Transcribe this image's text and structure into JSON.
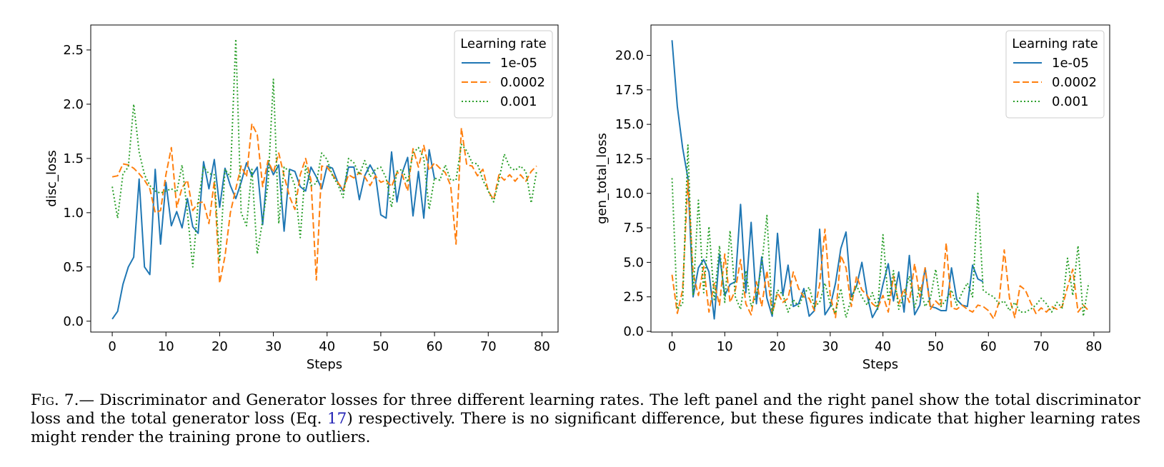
{
  "chart_data": [
    {
      "type": "line",
      "xlabel": "Steps",
      "ylabel": "disc_loss",
      "xlim": [
        -4,
        83
      ],
      "ylim": [
        -0.1,
        2.73
      ],
      "xticks": [
        "0",
        "10",
        "20",
        "30",
        "40",
        "50",
        "60",
        "70",
        "80"
      ],
      "yticks": [
        "0.0",
        "0.5",
        "1.0",
        "1.5",
        "2.0",
        "2.5"
      ],
      "grid": false,
      "legend": {
        "title": "Learning rate",
        "placement": "top-right"
      },
      "series": [
        {
          "name": "1e-05",
          "color": "#1f77b4",
          "style": "solid",
          "x": [
            0,
            1,
            2,
            3,
            4,
            5,
            6,
            7,
            8,
            9,
            10,
            11,
            12,
            13,
            14,
            15,
            16,
            17,
            18,
            19,
            20,
            21,
            22,
            23,
            24,
            25,
            26,
            27,
            28,
            29,
            30,
            31,
            32,
            33,
            34,
            35,
            36,
            37,
            38,
            39,
            40,
            41,
            42,
            43,
            44,
            45,
            46,
            47,
            48,
            49,
            50,
            51,
            52,
            53,
            54,
            55,
            56,
            57,
            58,
            59,
            60
          ],
          "y": [
            0.02,
            0.09,
            0.34,
            0.5,
            0.59,
            1.31,
            0.5,
            0.43,
            1.4,
            0.71,
            1.28,
            0.88,
            1.01,
            0.86,
            1.13,
            0.87,
            0.81,
            1.47,
            1.22,
            1.49,
            1.05,
            1.41,
            1.25,
            1.13,
            1.28,
            1.46,
            1.34,
            1.42,
            0.89,
            1.47,
            1.35,
            1.44,
            0.83,
            1.4,
            1.38,
            1.24,
            1.2,
            1.42,
            1.33,
            1.22,
            1.43,
            1.41,
            1.28,
            1.2,
            1.42,
            1.42,
            1.12,
            1.34,
            1.44,
            1.35,
            0.98,
            0.95,
            1.56,
            1.1,
            1.37,
            1.51,
            0.97,
            1.38,
            0.95,
            1.58,
            1.31
          ]
        },
        {
          "name": "0.0002",
          "color": "#ff7f0e",
          "style": "dashed",
          "x": [
            0,
            1,
            2,
            3,
            4,
            5,
            6,
            7,
            8,
            9,
            10,
            11,
            12,
            13,
            14,
            15,
            16,
            17,
            18,
            19,
            20,
            21,
            22,
            23,
            24,
            25,
            26,
            27,
            28,
            29,
            30,
            31,
            32,
            33,
            34,
            35,
            36,
            37,
            38,
            39,
            40,
            41,
            42,
            43,
            44,
            45,
            46,
            47,
            48,
            49,
            50,
            51,
            52,
            53,
            54,
            55,
            56,
            57,
            58,
            59,
            60,
            61,
            62,
            63,
            64,
            65,
            66,
            67,
            68,
            69,
            70,
            71,
            72,
            73,
            74,
            75,
            76,
            77,
            78,
            79
          ],
          "y": [
            1.33,
            1.34,
            1.45,
            1.44,
            1.41,
            1.36,
            1.3,
            1.22,
            1.0,
            1.02,
            1.35,
            1.6,
            1.05,
            1.23,
            1.3,
            1.02,
            1.09,
            1.1,
            0.9,
            1.29,
            0.35,
            0.6,
            1.0,
            1.22,
            1.43,
            1.33,
            1.82,
            1.72,
            1.24,
            1.48,
            1.37,
            1.55,
            1.34,
            1.15,
            1.03,
            1.35,
            1.5,
            1.3,
            0.38,
            1.43,
            1.42,
            1.35,
            1.28,
            1.21,
            1.35,
            1.32,
            1.37,
            1.33,
            1.25,
            1.34,
            1.28,
            1.3,
            1.24,
            1.37,
            1.35,
            1.2,
            1.59,
            1.42,
            1.62,
            1.39,
            1.46,
            1.41,
            1.37,
            1.25,
            0.71,
            1.78,
            1.44,
            1.43,
            1.34,
            1.4,
            1.2,
            1.12,
            1.35,
            1.3,
            1.35,
            1.29,
            1.35,
            1.29,
            1.38,
            1.43
          ]
        },
        {
          "name": "0.001",
          "color": "#2ca02c",
          "style": "dotted",
          "x": [
            0,
            1,
            2,
            3,
            4,
            5,
            6,
            7,
            8,
            9,
            10,
            11,
            12,
            13,
            14,
            15,
            16,
            17,
            18,
            19,
            20,
            21,
            22,
            23,
            24,
            25,
            26,
            27,
            28,
            29,
            30,
            31,
            32,
            33,
            34,
            35,
            36,
            37,
            38,
            39,
            40,
            41,
            42,
            43,
            44,
            45,
            46,
            47,
            48,
            49,
            50,
            51,
            52,
            53,
            54,
            55,
            56,
            57,
            58,
            59,
            60,
            61,
            62,
            63,
            64,
            65,
            66,
            67,
            68,
            69,
            70,
            71,
            72,
            73,
            74,
            75,
            76,
            77,
            78,
            79
          ],
          "y": [
            1.24,
            0.95,
            1.36,
            1.42,
            2.0,
            1.56,
            1.35,
            1.25,
            1.2,
            1.18,
            1.2,
            1.22,
            1.19,
            1.44,
            1.0,
            0.5,
            1.1,
            1.42,
            1.36,
            1.35,
            0.55,
            1.4,
            1.33,
            2.6,
            1.0,
            0.88,
            1.4,
            0.62,
            0.93,
            1.26,
            2.23,
            0.9,
            1.42,
            1.38,
            1.25,
            0.77,
            1.43,
            1.25,
            1.27,
            1.55,
            1.49,
            1.34,
            1.26,
            1.14,
            1.5,
            1.46,
            1.35,
            1.48,
            1.33,
            1.4,
            1.42,
            1.32,
            1.05,
            1.38,
            1.4,
            1.28,
            1.55,
            1.6,
            1.5,
            1.03,
            1.32,
            1.3,
            1.44,
            1.3,
            1.3,
            1.63,
            1.57,
            1.46,
            1.45,
            1.3,
            1.2,
            1.1,
            1.3,
            1.54,
            1.42,
            1.39,
            1.43,
            1.38,
            1.09,
            1.38
          ]
        }
      ]
    },
    {
      "type": "line",
      "xlabel": "Steps",
      "ylabel": "gen_total_loss",
      "xlim": [
        -4,
        83
      ],
      "ylim": [
        -0.05,
        22.2
      ],
      "xticks": [
        "0",
        "10",
        "20",
        "30",
        "40",
        "50",
        "60",
        "70",
        "80"
      ],
      "yticks": [
        "0.0",
        "2.5",
        "5.0",
        "7.5",
        "10.0",
        "12.5",
        "15.0",
        "17.5",
        "20.0"
      ],
      "grid": false,
      "legend": {
        "title": "Learning rate",
        "placement": "top-right"
      },
      "series": [
        {
          "name": "1e-05",
          "color": "#1f77b4",
          "style": "solid",
          "x": [
            0,
            1,
            2,
            3,
            4,
            5,
            6,
            7,
            8,
            9,
            10,
            11,
            12,
            13,
            14,
            15,
            16,
            17,
            18,
            19,
            20,
            21,
            22,
            23,
            24,
            25,
            26,
            27,
            28,
            29,
            30,
            31,
            32,
            33,
            34,
            35,
            36,
            37,
            38,
            39,
            40,
            41,
            42,
            43,
            44,
            45,
            46,
            47,
            48,
            49,
            50,
            51,
            52,
            53,
            54,
            55,
            56,
            57,
            58,
            59
          ],
          "y": [
            21.1,
            16.3,
            13.3,
            11.1,
            2.5,
            4.6,
            5.2,
            4.3,
            0.9,
            5.6,
            2.6,
            3.4,
            3.6,
            9.2,
            2.8,
            7.9,
            2.0,
            5.4,
            2.4,
            1.1,
            7.1,
            2.6,
            4.8,
            1.8,
            2.0,
            3.1,
            1.1,
            1.5,
            7.4,
            1.2,
            1.8,
            3.5,
            6.0,
            7.2,
            2.5,
            3.3,
            5.0,
            2.6,
            1.0,
            1.7,
            3.4,
            4.9,
            2.2,
            4.3,
            1.4,
            5.5,
            1.2,
            1.9,
            4.6,
            1.8,
            1.7,
            1.5,
            1.5,
            4.6,
            2.3,
            1.9,
            1.8,
            4.8,
            3.8,
            3.6
          ]
        },
        {
          "name": "0.0002",
          "color": "#ff7f0e",
          "style": "dashed",
          "x": [
            0,
            1,
            2,
            3,
            4,
            5,
            6,
            7,
            8,
            9,
            10,
            11,
            12,
            13,
            14,
            15,
            16,
            17,
            18,
            19,
            20,
            21,
            22,
            23,
            24,
            25,
            26,
            27,
            28,
            29,
            30,
            31,
            32,
            33,
            34,
            35,
            36,
            37,
            38,
            39,
            40,
            41,
            42,
            43,
            44,
            45,
            46,
            47,
            48,
            49,
            50,
            51,
            52,
            53,
            54,
            55,
            56,
            57,
            58,
            59,
            60,
            61,
            62,
            63,
            64,
            65,
            66,
            67,
            68,
            69,
            70,
            71,
            72,
            73,
            74,
            75,
            76,
            77,
            78,
            79
          ],
          "y": [
            4.1,
            1.3,
            3.0,
            11.0,
            4.2,
            2.6,
            4.7,
            1.4,
            3.5,
            1.9,
            5.6,
            2.1,
            3.0,
            5.2,
            2.0,
            1.2,
            3.6,
            1.8,
            4.4,
            1.3,
            2.8,
            2.1,
            2.4,
            4.3,
            3.1,
            2.5,
            2.4,
            1.5,
            3.4,
            7.4,
            2.6,
            1.0,
            5.5,
            4.6,
            1.8,
            4.0,
            3.0,
            2.6,
            2.0,
            1.7,
            2.6,
            1.4,
            4.0,
            2.0,
            3.1,
            2.1,
            4.9,
            2.5,
            4.6,
            1.6,
            2.2,
            1.8,
            6.4,
            1.7,
            1.6,
            1.9,
            1.6,
            1.4,
            1.9,
            1.8,
            1.5,
            0.9,
            2.1,
            5.9,
            2.4,
            1.0,
            3.3,
            3.0,
            2.1,
            1.3,
            1.7,
            1.4,
            1.8,
            1.6,
            1.8,
            3.2,
            4.5,
            1.4,
            1.9,
            1.5
          ]
        },
        {
          "name": "0.001",
          "color": "#2ca02c",
          "style": "dotted",
          "x": [
            0,
            1,
            2,
            3,
            4,
            5,
            6,
            7,
            8,
            9,
            10,
            11,
            12,
            13,
            14,
            15,
            16,
            17,
            18,
            19,
            20,
            21,
            22,
            23,
            24,
            25,
            26,
            27,
            28,
            29,
            30,
            31,
            32,
            33,
            34,
            35,
            36,
            37,
            38,
            39,
            40,
            41,
            42,
            43,
            44,
            45,
            46,
            47,
            48,
            49,
            50,
            51,
            52,
            53,
            54,
            55,
            56,
            57,
            58,
            59,
            60,
            61,
            62,
            63,
            64,
            65,
            66,
            67,
            68,
            69,
            70,
            71,
            72,
            73,
            74,
            75,
            76,
            77,
            78,
            79
          ],
          "y": [
            11.1,
            1.6,
            2.0,
            13.5,
            2.6,
            9.5,
            2.8,
            7.6,
            2.3,
            6.2,
            2.1,
            7.3,
            2.5,
            1.6,
            4.4,
            1.8,
            2.6,
            4.8,
            8.4,
            1.2,
            3.0,
            2.7,
            1.4,
            2.3,
            1.8,
            2.7,
            3.2,
            1.8,
            2.1,
            3.5,
            2.0,
            1.3,
            3.1,
            1.0,
            2.4,
            3.3,
            2.5,
            1.9,
            2.8,
            1.6,
            7.0,
            2.2,
            4.4,
            1.6,
            2.6,
            4.0,
            1.7,
            3.2,
            1.8,
            2.4,
            4.5,
            1.8,
            2.3,
            3.0,
            1.9,
            2.8,
            3.5,
            2.5,
            10.0,
            3.0,
            2.7,
            2.5,
            2.0,
            2.2,
            1.5,
            2.1,
            1.4,
            1.4,
            1.6,
            1.9,
            2.4,
            2.0,
            1.4,
            2.1,
            1.7,
            5.3,
            2.6,
            6.2,
            1.1,
            3.5
          ]
        }
      ]
    }
  ],
  "caption": {
    "label": "Fig. 7.",
    "text_before_ref": "— Discriminator and Generator losses for three different learning rates.  The left panel and the right panel show the total discriminator loss and the total generator loss (Eq. ",
    "ref": "17",
    "text_after_ref": ") respectively. There is no significant difference, but these figures indicate that higher learning rates might render the training prone to outliers."
  }
}
